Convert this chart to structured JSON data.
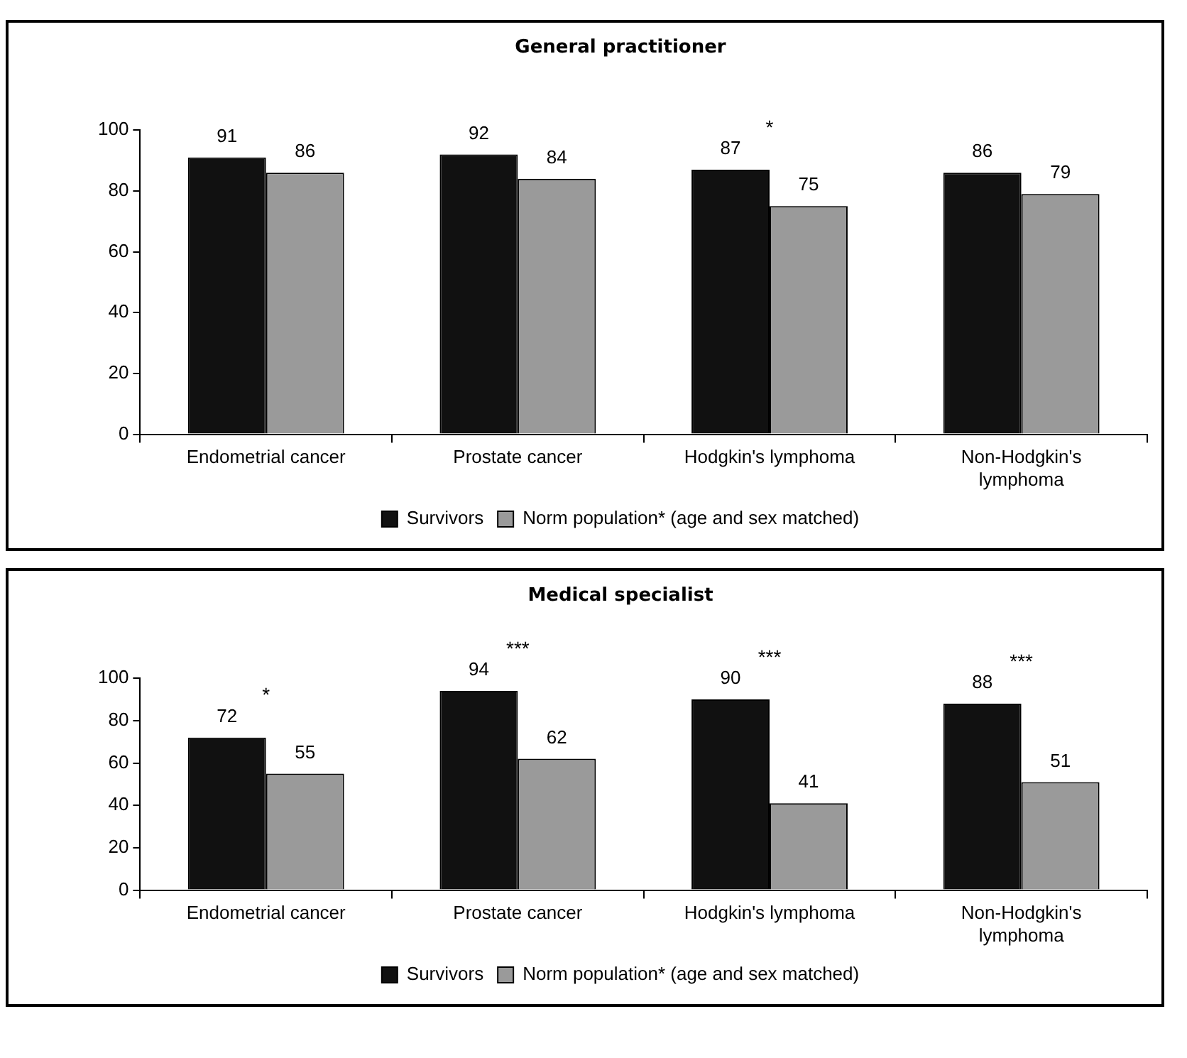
{
  "chart_data": [
    {
      "type": "bar",
      "title": "General practitioner",
      "categories": [
        "Endometrial cancer",
        "Prostate cancer",
        "Hodgkin's lymphoma",
        "Non-Hodgkin's lymphoma"
      ],
      "series": [
        {
          "name": "Survivors",
          "color": "#111111",
          "values": [
            91,
            92,
            87,
            86
          ]
        },
        {
          "name": "Norm population* (age and sex matched)",
          "color": "#9a9a9a",
          "values": [
            86,
            84,
            75,
            79
          ]
        }
      ],
      "ylim": [
        0,
        100
      ],
      "yticks": [
        0,
        20,
        40,
        60,
        80,
        100
      ],
      "grid": false,
      "legend": "bottom",
      "data_labels": true,
      "annotations": [
        {
          "text": "*",
          "x": "Hodgkin's lymphoma",
          "y": 87
        }
      ]
    },
    {
      "type": "bar",
      "title": "Medical specialist",
      "categories": [
        "Endometrial cancer",
        "Prostate cancer",
        "Hodgkin's lymphoma",
        "Non-Hodgkin's lymphoma"
      ],
      "series": [
        {
          "name": "Survivors",
          "color": "#111111",
          "values": [
            72,
            94,
            90,
            88
          ]
        },
        {
          "name": "Norm population* (age and sex matched)",
          "color": "#9a9a9a",
          "values": [
            55,
            62,
            41,
            51
          ]
        }
      ],
      "ylim": [
        0,
        100
      ],
      "yticks": [
        0,
        20,
        40,
        60,
        80,
        100
      ],
      "grid": false,
      "legend": "bottom",
      "data_labels": true,
      "annotations": [
        {
          "text": "*",
          "x": "Endometrial cancer",
          "y": 72
        },
        {
          "text": "***",
          "x": "Prostate cancer",
          "y": 94
        },
        {
          "text": "***",
          "x": "Hodgkin's lymphoma",
          "y": 90
        },
        {
          "text": "***",
          "x": "Non-Hodgkin's lymphoma",
          "y": 88
        }
      ]
    }
  ]
}
